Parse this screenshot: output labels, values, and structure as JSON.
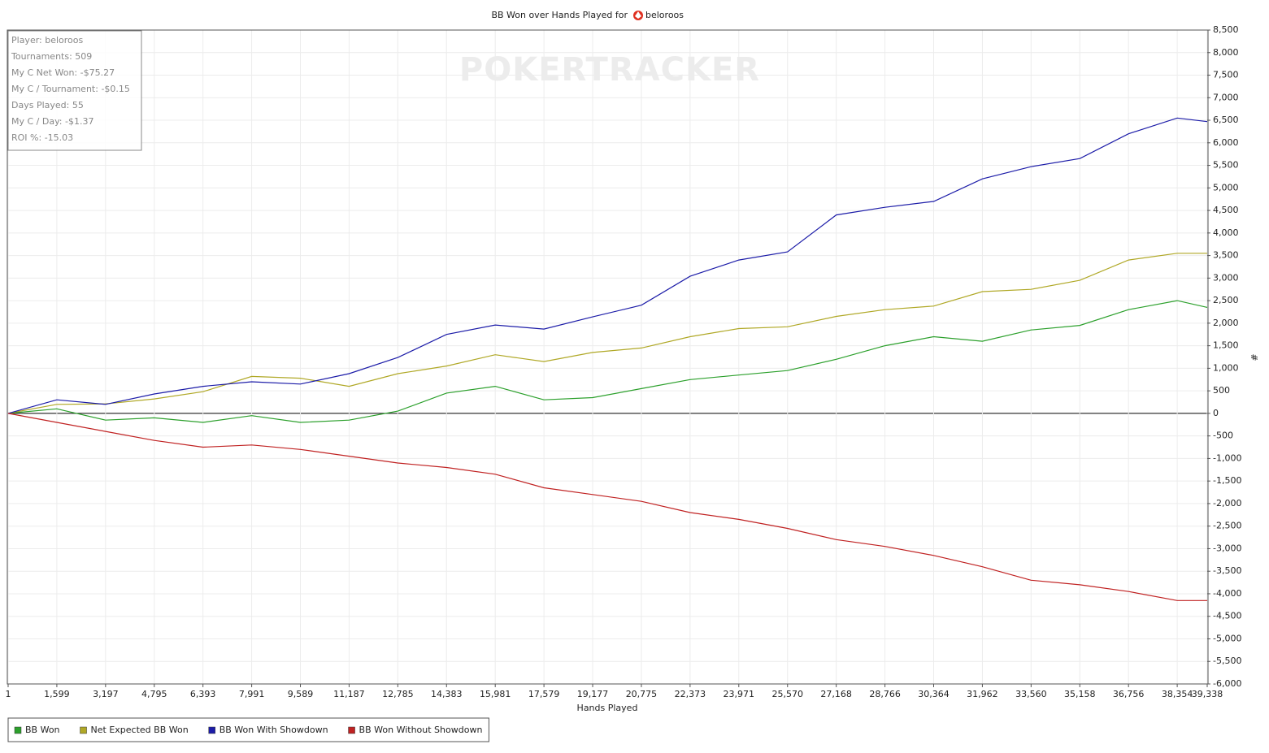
{
  "chart_data": {
    "type": "line",
    "title": "BB Won over Hands Played for",
    "title_player": "beloroos",
    "watermark": "POKERTRACKER",
    "info_box": [
      "Player: beloroos",
      "Tournaments: 509",
      "My C Net Won: -$75.27",
      "My C / Tournament: -$0.15",
      "Days Played: 55",
      "My C / Day: -$1.37",
      "ROI %: -15.03"
    ],
    "x_label": "Hands Played",
    "y_label": "#",
    "x": [
      1,
      1599,
      3197,
      4795,
      6393,
      7991,
      9589,
      11187,
      12785,
      14383,
      15981,
      17579,
      19177,
      20775,
      22373,
      23971,
      25570,
      27168,
      28766,
      30364,
      31962,
      33560,
      35158,
      36756,
      38354,
      39338
    ],
    "xlim": [
      1,
      39338
    ],
    "xticks": [
      1,
      {
        "value": 1599,
        "label": "1,599"
      },
      {
        "value": 3197,
        "label": "3,197"
      },
      {
        "value": 4795,
        "label": "4,795"
      },
      {
        "value": 6393,
        "label": "6,393"
      },
      {
        "value": 7991,
        "label": "7,991"
      },
      {
        "value": 9589,
        "label": "9,589"
      },
      {
        "value": 11187,
        "label": "11,187"
      },
      {
        "value": 12785,
        "label": "12,785"
      },
      {
        "value": 14383,
        "label": "14,383"
      },
      {
        "value": 15981,
        "label": "15,981"
      },
      {
        "value": 17579,
        "label": "17,579"
      },
      {
        "value": 19177,
        "label": "19,177"
      },
      {
        "value": 20775,
        "label": "20,775"
      },
      {
        "value": 22373,
        "label": "22,373"
      },
      {
        "value": 23971,
        "label": "23,971"
      },
      {
        "value": 25570,
        "label": "25,570"
      },
      {
        "value": 27168,
        "label": "27,168"
      },
      {
        "value": 28766,
        "label": "28,766"
      },
      {
        "value": 30364,
        "label": "30,364"
      },
      {
        "value": 31962,
        "label": "31,962"
      },
      {
        "value": 33560,
        "label": "33,560"
      },
      {
        "value": 35158,
        "label": "35,158"
      },
      {
        "value": 36756,
        "label": "36,756"
      },
      {
        "value": 38354,
        "label": "38,354"
      },
      {
        "value": 39338,
        "label": "39,338"
      }
    ],
    "ylim": [
      -6000,
      8500
    ],
    "yticks": [
      {
        "value": 8500,
        "label": "8,500"
      },
      {
        "value": 8000,
        "label": "8,000"
      },
      {
        "value": 7500,
        "label": "7,500"
      },
      {
        "value": 7000,
        "label": "7,000"
      },
      {
        "value": 6500,
        "label": "6,500"
      },
      {
        "value": 6000,
        "label": "6,000"
      },
      {
        "value": 5500,
        "label": "5,500"
      },
      {
        "value": 5000,
        "label": "5,000"
      },
      {
        "value": 4500,
        "label": "4,500"
      },
      {
        "value": 4000,
        "label": "4,000"
      },
      {
        "value": 3500,
        "label": "3,500"
      },
      {
        "value": 3000,
        "label": "3,000"
      },
      {
        "value": 2500,
        "label": "2,500"
      },
      {
        "value": 2000,
        "label": "2,000"
      },
      {
        "value": 1500,
        "label": "1,500"
      },
      {
        "value": 1000,
        "label": "1,000"
      },
      500,
      0,
      -500,
      {
        "value": -1000,
        "label": "-1,000"
      },
      {
        "value": -1500,
        "label": "-1,500"
      },
      {
        "value": -2000,
        "label": "-2,000"
      },
      {
        "value": -2500,
        "label": "-2,500"
      },
      {
        "value": -3000,
        "label": "-3,000"
      },
      {
        "value": -3500,
        "label": "-3,500"
      },
      {
        "value": -4000,
        "label": "-4,000"
      },
      {
        "value": -4500,
        "label": "-4,500"
      },
      {
        "value": -5000,
        "label": "-5,000"
      },
      {
        "value": -5500,
        "label": "-5,500"
      },
      {
        "value": -6000,
        "label": "-6,000"
      }
    ],
    "grid": true,
    "legend": "bottom-left",
    "series": [
      {
        "name": "BB Won",
        "color": "#2ca02c",
        "values": [
          0,
          100,
          -150,
          -100,
          -200,
          -50,
          -200,
          -150,
          50,
          450,
          600,
          300,
          350,
          550,
          750,
          850,
          950,
          1200,
          1500,
          1700,
          1600,
          1850,
          1950,
          2300,
          2500,
          2350
        ]
      },
      {
        "name": "Net Expected BB Won",
        "color": "#b0a826",
        "values": [
          0,
          200,
          210,
          320,
          480,
          820,
          780,
          600,
          880,
          1050,
          1300,
          1150,
          1350,
          1450,
          1700,
          1880,
          1920,
          2150,
          2300,
          2380,
          2700,
          2750,
          2950,
          3400,
          3550,
          3550
        ]
      },
      {
        "name": "BB Won With Showdown",
        "color": "#1c1ca8",
        "values": [
          0,
          300,
          200,
          430,
          600,
          700,
          650,
          880,
          1240,
          1750,
          1960,
          1870,
          2140,
          2400,
          3040,
          3400,
          3580,
          4400,
          4570,
          4700,
          5200,
          5470,
          5650,
          6200,
          6550,
          6470
        ]
      },
      {
        "name": "BB Won Without Showdown",
        "color": "#c02222",
        "values": [
          0,
          -200,
          -400,
          -600,
          -750,
          -700,
          -800,
          -950,
          -1100,
          -1200,
          -1350,
          -1650,
          -1800,
          -1950,
          -2200,
          -2350,
          -2550,
          -2800,
          -2950,
          -3150,
          -3400,
          -3700,
          -3800,
          -3950,
          -4150,
          -4150
        ]
      }
    ]
  }
}
